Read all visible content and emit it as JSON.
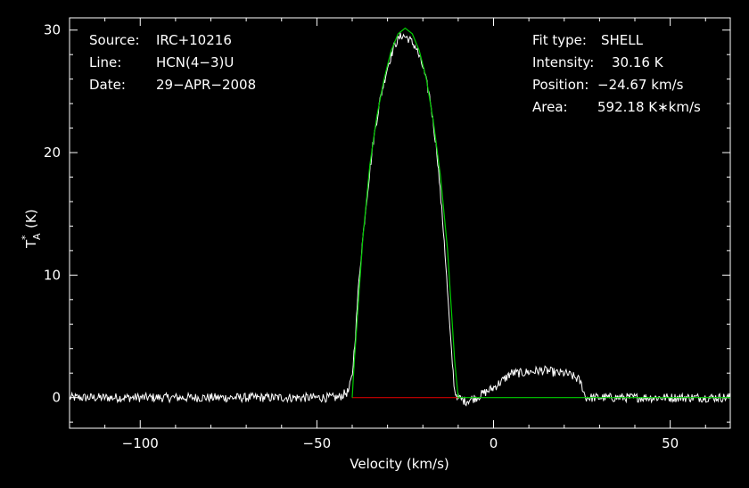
{
  "info_left": {
    "source_label": "Source:",
    "source_value": "IRC+10216",
    "line_label": "Line:",
    "line_value": "HCN(4−3)U",
    "date_label": "Date:",
    "date_value": "29−APR−2008"
  },
  "info_right": {
    "fit_label": "Fit type:",
    "fit_value": "SHELL",
    "intensity_label": "Intensity:",
    "intensity_value": "30.16 K",
    "position_label": "Position:",
    "position_value": "−24.67 km/s",
    "area_label": "Area:",
    "area_value": "592.18 K∗km/s"
  },
  "colors": {
    "background": "#000000",
    "spectrum": "#ffffff",
    "fit": "#00cc00",
    "baseline": "#cc0000"
  },
  "chart_data": {
    "type": "line",
    "title": "",
    "xlabel": "Velocity (km/s)",
    "ylabel": "T",
    "ylabel_sup": "*",
    "ylabel_sub": "A",
    "ylabel_unit": "(K)",
    "xlim": [
      -120,
      67
    ],
    "ylim": [
      -2.5,
      31
    ],
    "x_ticks": [
      -100,
      -50,
      0,
      50
    ],
    "x_tick_labels": [
      "−100",
      "−50",
      "0",
      "50"
    ],
    "y_ticks": [
      0,
      10,
      20,
      30
    ],
    "y_tick_labels": [
      "0",
      "10",
      "20",
      "30"
    ],
    "grid": false,
    "legend": "none",
    "series": [
      {
        "role": "spectrum",
        "x": [
          -120,
          -110,
          -100,
          -90,
          -80,
          -70,
          -60,
          -50,
          -44,
          -41,
          -40,
          -39,
          -38,
          -36,
          -34,
          -32,
          -30,
          -28,
          -26,
          -24,
          -22,
          -20,
          -18,
          -16,
          -14,
          -12,
          -11,
          -10,
          -8,
          -5,
          0,
          3,
          5,
          8,
          10,
          13,
          15,
          18,
          20,
          22,
          24,
          25,
          26,
          30,
          40,
          50,
          60,
          67
        ],
        "y": [
          0,
          0,
          0,
          0,
          0,
          0,
          0,
          0,
          0,
          0.5,
          1.8,
          5.5,
          10,
          16,
          21,
          24.5,
          27,
          28.8,
          29.6,
          29.3,
          28.6,
          27,
          24.5,
          20,
          13,
          4,
          0.5,
          0,
          -0.3,
          0,
          0.8,
          1.5,
          2,
          2,
          2.1,
          2.2,
          2.2,
          2,
          2,
          1.8,
          1.5,
          1,
          0,
          0,
          0,
          0,
          0,
          0
        ]
      },
      {
        "role": "fit",
        "x": [
          -40,
          -39.4,
          -37,
          -35,
          -33,
          -31,
          -29,
          -27,
          -25,
          -23,
          -21,
          -19,
          -17,
          -15,
          -13,
          -11,
          -10,
          10,
          20,
          26,
          67
        ],
        "y": [
          0,
          3,
          13,
          19,
          23,
          26,
          28.3,
          29.7,
          30.16,
          29.7,
          28.3,
          26,
          22.5,
          18,
          12,
          3,
          0,
          0,
          0,
          0,
          0
        ]
      },
      {
        "role": "baseline",
        "x": [
          -40,
          -10
        ],
        "y": [
          0,
          0
        ]
      }
    ]
  }
}
